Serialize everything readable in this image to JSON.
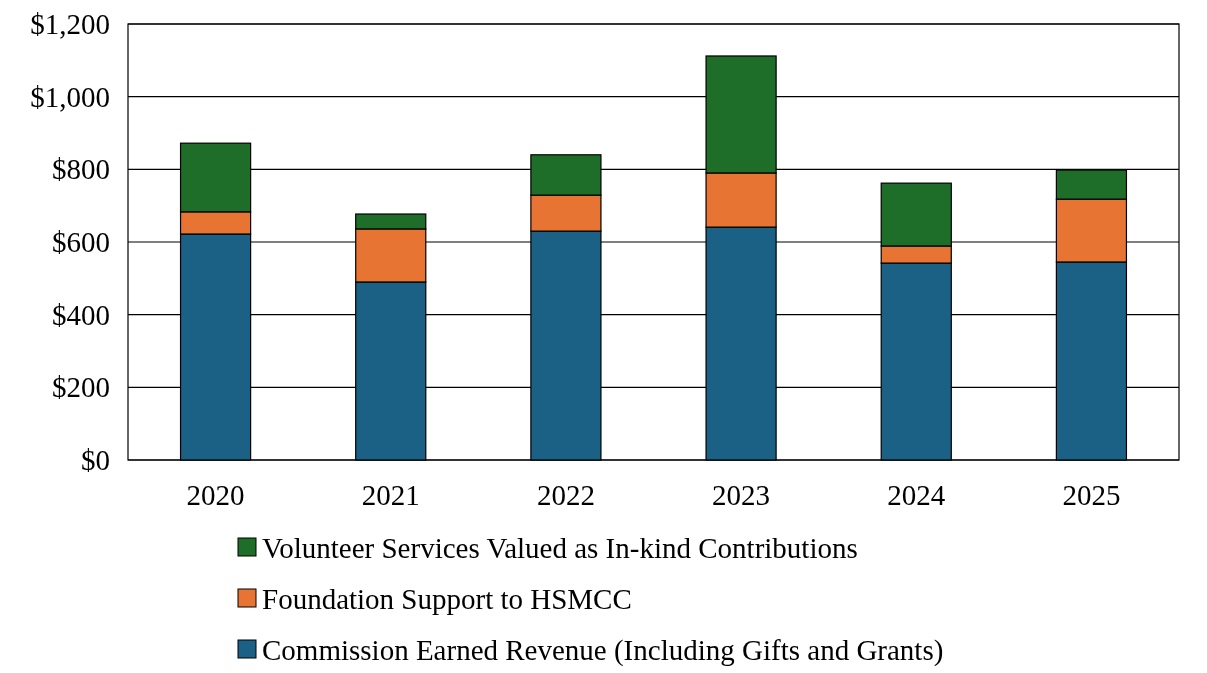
{
  "chart_data": {
    "type": "bar",
    "stacked": true,
    "categories": [
      "2020",
      "2021",
      "2022",
      "2023",
      "2024",
      "2025"
    ],
    "series": [
      {
        "name": "Commission Earned Revenue (Including Gifts and Grants)",
        "color": "#1a6185",
        "values": [
          622,
          490,
          630,
          641,
          542,
          545
        ]
      },
      {
        "name": "Foundation Support to HSMCC",
        "color": "#e87433",
        "values": [
          61,
          146,
          99,
          149,
          47,
          173
        ]
      },
      {
        "name": "Volunteer Services Valued as In-kind Contributions",
        "color": "#1e6e2a",
        "values": [
          189,
          41,
          111,
          322,
          173,
          80
        ]
      }
    ],
    "ylim": [
      0,
      1200
    ],
    "yticks": [
      {
        "value": 0,
        "label": "$0"
      },
      {
        "value": 200,
        "label": "$200"
      },
      {
        "value": 400,
        "label": "$400"
      },
      {
        "value": 600,
        "label": "$600"
      },
      {
        "value": 800,
        "label": "$800"
      },
      {
        "value": 1000,
        "label": "$1,000"
      },
      {
        "value": 1200,
        "label": "$1,200"
      }
    ],
    "grid": "y",
    "legend": "bottom"
  }
}
